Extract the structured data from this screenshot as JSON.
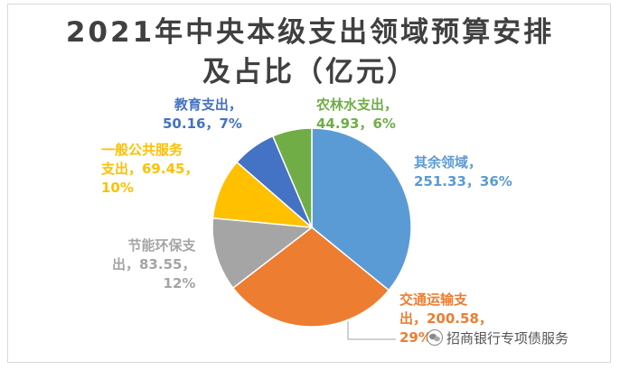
{
  "chart_data": {
    "type": "pie",
    "title": "2021年中央本级支出领域预算安排\n及占比（亿元）",
    "slices": [
      {
        "label": "其余领域",
        "value": 251.33,
        "percent": "36%",
        "color": "#5b9bd5",
        "text": "其余领域，\n251.33，36%"
      },
      {
        "label": "交通运输支出",
        "value": 200.58,
        "percent": "29%",
        "color": "#ed7d31",
        "text": "交通运输支\n出，200.58，\n29%"
      },
      {
        "label": "节能环保支出",
        "value": 83.55,
        "percent": "12%",
        "color": "#a5a5a5",
        "text": "节能环保支\n出，83.55，\n12%"
      },
      {
        "label": "一般公共服务支出",
        "value": 69.45,
        "percent": "10%",
        "color": "#ffc000",
        "text": "一般公共服务\n支出，69.45，\n10%"
      },
      {
        "label": "教育支出",
        "value": 50.16,
        "percent": "7%",
        "color": "#4472c4",
        "text": "教育支出，\n50.16，7%"
      },
      {
        "label": "农林水支出",
        "value": 44.93,
        "percent": "6%",
        "color": "#70ad47",
        "text": "农林水支出，\n44.93，6%"
      }
    ]
  },
  "watermark": {
    "text": "招商银行专项债服务"
  }
}
